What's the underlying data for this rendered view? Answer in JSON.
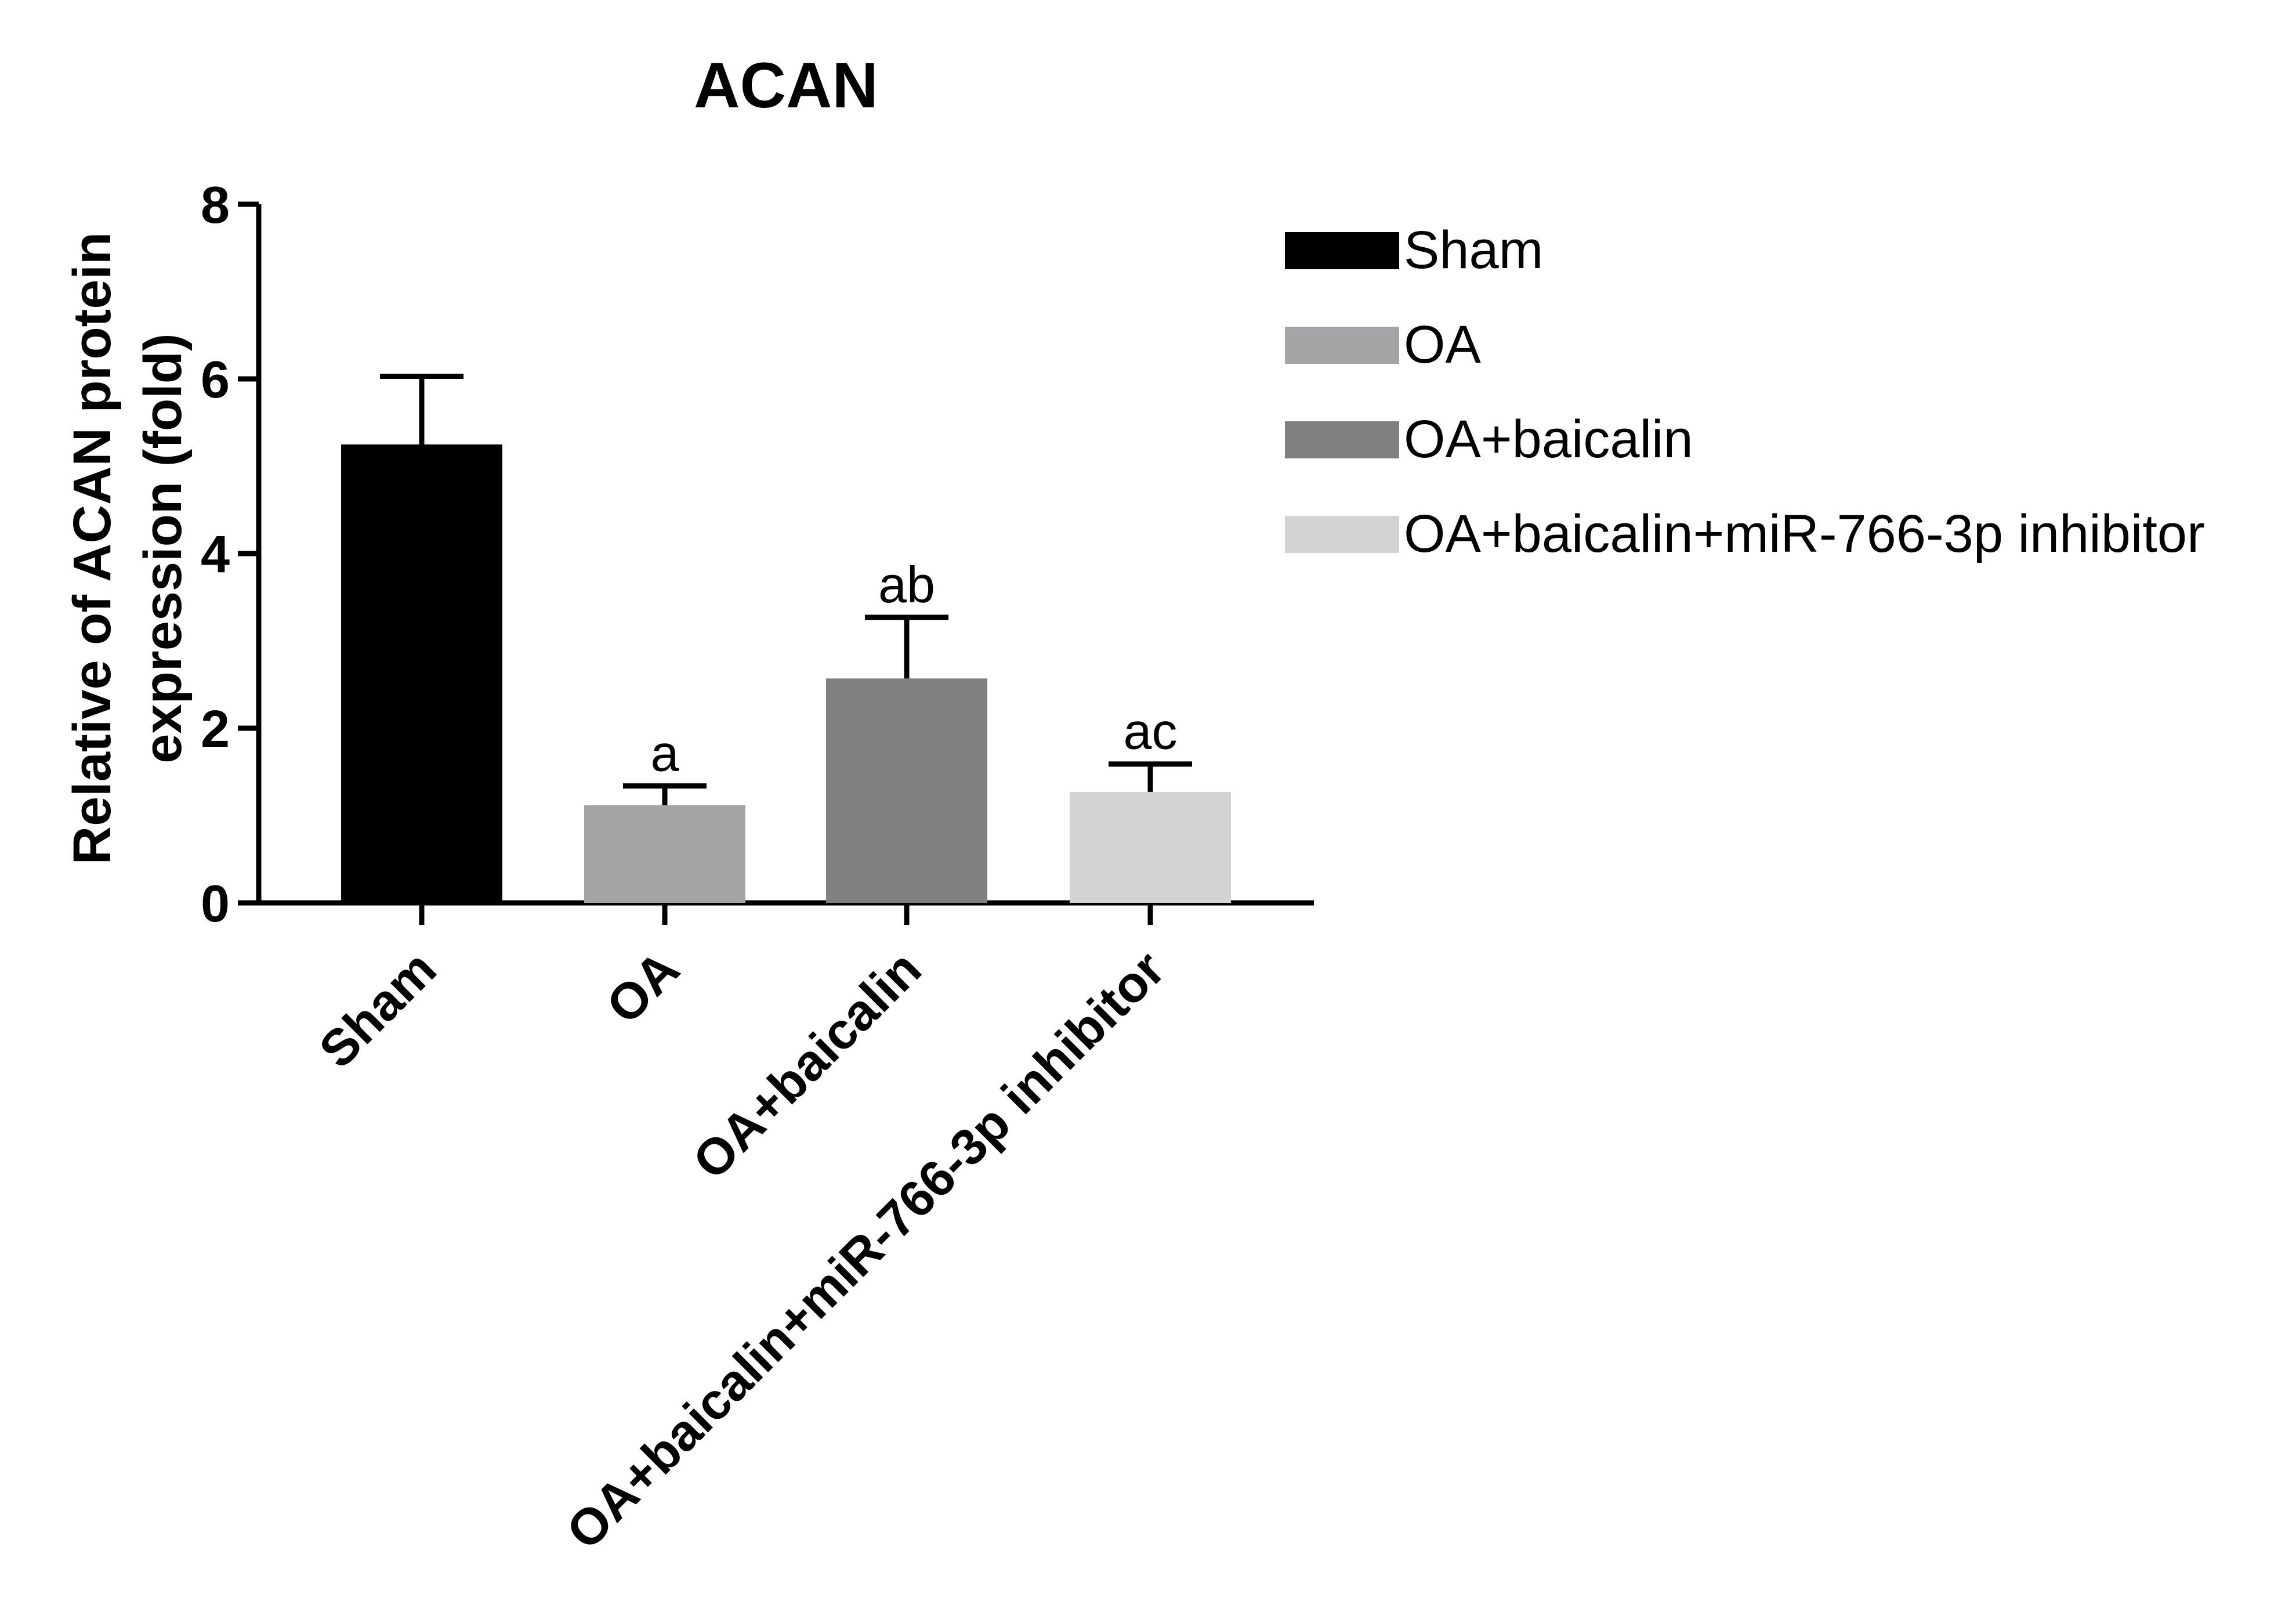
{
  "chart_data": {
    "type": "bar",
    "title": "ACAN",
    "ylabel": [
      "Relative of ACAN protein",
      "expression (fold)"
    ],
    "xlabel": "",
    "ylim": [
      0,
      8
    ],
    "yticks": [
      0,
      2,
      4,
      6,
      8
    ],
    "grid": false,
    "legend_position": "right",
    "categories": [
      "Sham",
      "OA",
      "OA+baicalin",
      "OA+baicalin+miR-766-3p inhibitor"
    ],
    "values": [
      5.25,
      1.12,
      2.57,
      1.27
    ],
    "errors": [
      0.78,
      0.22,
      0.7,
      0.32
    ],
    "annotations": [
      "",
      "a",
      "ab",
      "ac"
    ],
    "colors": [
      "#000000",
      "#a5a5a8",
      "#808080",
      "#d3d3d3"
    ]
  }
}
